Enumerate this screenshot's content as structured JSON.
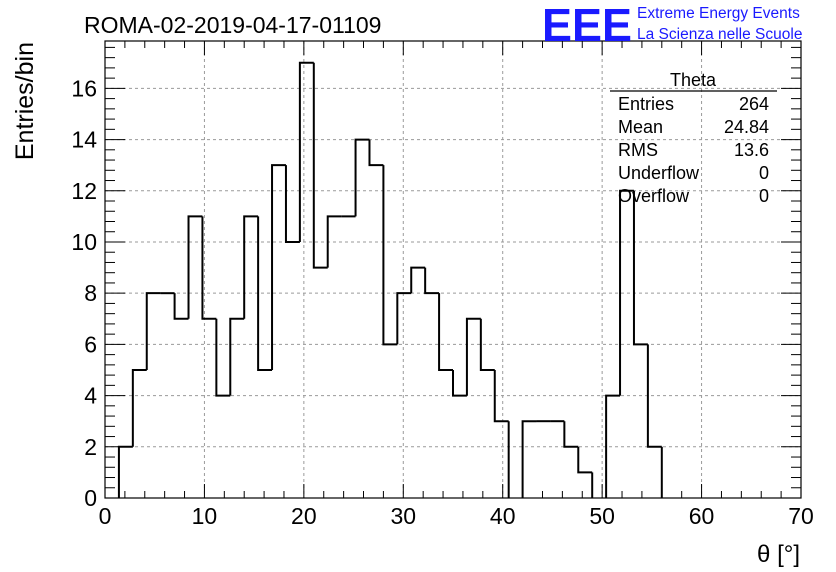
{
  "header": {
    "title": "ROMA-02-2019-04-17-01109",
    "logo_text": "EEE",
    "brand_line1": "Extreme Energy Events",
    "brand_line2": "La Scienza nelle Scuole",
    "brand_color": "#1a1aff"
  },
  "stats": {
    "title": "Theta",
    "rows": [
      {
        "label": "Entries",
        "value": "264"
      },
      {
        "label": "Mean",
        "value": "24.84"
      },
      {
        "label": "RMS",
        "value": "13.6"
      },
      {
        "label": "Underflow",
        "value": "0"
      },
      {
        "label": "Overflow",
        "value": "0"
      }
    ]
  },
  "chart_data": {
    "type": "histogram",
    "xlabel": "θ [°]",
    "ylabel": "Entries/bin",
    "xlim": [
      0,
      70
    ],
    "ylim": [
      0,
      17.85
    ],
    "grid": true,
    "bin_width": 1.4,
    "bin_start": 0,
    "values": [
      0,
      2,
      5,
      8,
      8,
      7,
      11,
      7,
      4,
      7,
      11,
      5,
      13,
      10,
      17,
      9,
      11,
      11,
      14,
      13,
      6,
      8,
      9,
      8,
      5,
      4,
      7,
      5,
      3,
      0,
      3,
      3,
      3,
      2,
      1,
      0,
      4,
      12,
      6,
      2,
      0,
      0,
      0,
      0,
      0,
      0,
      0,
      0,
      0,
      0
    ],
    "x_ticks": [
      0,
      10,
      20,
      30,
      40,
      50,
      60,
      70
    ],
    "y_ticks": [
      0,
      2,
      4,
      6,
      8,
      10,
      12,
      14,
      16
    ],
    "line_color": "#000000"
  }
}
